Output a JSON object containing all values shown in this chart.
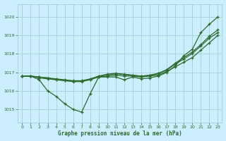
{
  "title": "Graphe pression niveau de la mer (hPa)",
  "xlim": [
    -0.5,
    23.5
  ],
  "ylim": [
    1014.3,
    1020.7
  ],
  "yticks": [
    1015,
    1016,
    1017,
    1018,
    1019,
    1020
  ],
  "xtick_labels": [
    "0",
    "1",
    "2",
    "3",
    "4",
    "5",
    "6",
    "7",
    "8",
    "9",
    "10",
    "11",
    "12",
    "13",
    "14",
    "15",
    "16",
    "17",
    "18",
    "19",
    "20",
    "21",
    "22",
    "23"
  ],
  "background_color": "#cceeff",
  "grid_color": "#99cccc",
  "line_color": "#2d6a2d",
  "series": [
    [
      1016.8,
      1016.8,
      1016.6,
      1016.0,
      1015.7,
      1015.3,
      1015.0,
      1014.85,
      1015.85,
      1016.75,
      1016.75,
      1016.75,
      1016.6,
      1016.75,
      1016.65,
      1016.7,
      1016.8,
      1017.0,
      1017.35,
      1017.9,
      1018.25,
      1019.15,
      1019.6,
      1020.0
    ],
    [
      1016.8,
      1016.8,
      1016.7,
      1016.65,
      1016.6,
      1016.55,
      1016.5,
      1016.5,
      1016.6,
      1016.75,
      1016.8,
      1016.85,
      1016.8,
      1016.8,
      1016.75,
      1016.8,
      1016.85,
      1017.05,
      1017.3,
      1017.55,
      1017.8,
      1018.2,
      1018.6,
      1019.0
    ],
    [
      1016.8,
      1016.8,
      1016.75,
      1016.7,
      1016.65,
      1016.6,
      1016.55,
      1016.55,
      1016.65,
      1016.8,
      1016.9,
      1016.95,
      1016.9,
      1016.85,
      1016.8,
      1016.85,
      1016.95,
      1017.15,
      1017.5,
      1017.8,
      1018.1,
      1018.5,
      1018.95,
      1019.3
    ],
    [
      1016.8,
      1016.8,
      1016.75,
      1016.7,
      1016.6,
      1016.58,
      1016.53,
      1016.52,
      1016.62,
      1016.78,
      1016.87,
      1016.92,
      1016.88,
      1016.84,
      1016.78,
      1016.83,
      1016.93,
      1017.12,
      1017.45,
      1017.72,
      1018.02,
      1018.42,
      1018.85,
      1019.15
    ]
  ]
}
